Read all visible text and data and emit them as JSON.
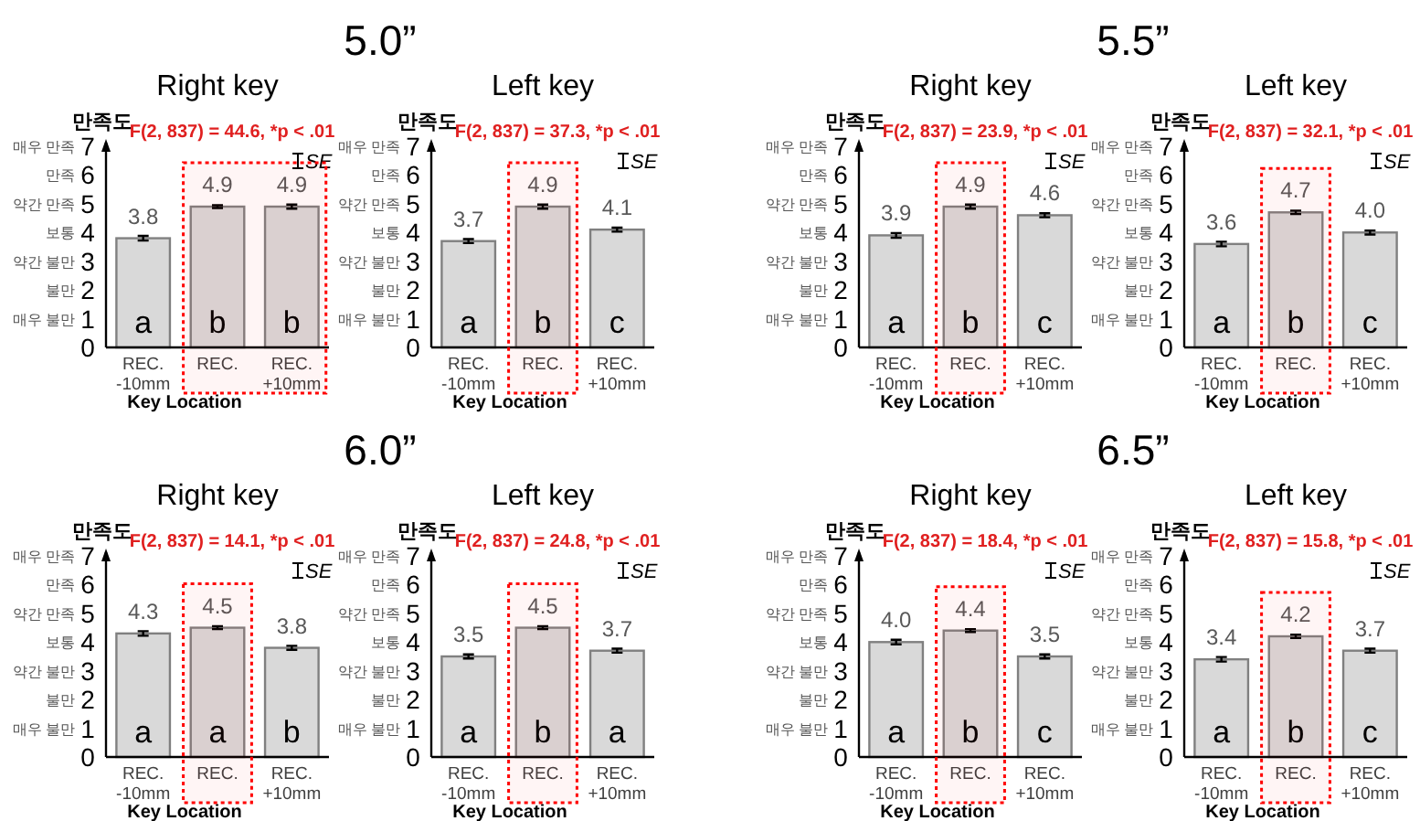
{
  "chart_data": [
    {
      "type": "bar",
      "title": "Right key",
      "xlabel": "Key Location",
      "ylabel": "만족도",
      "categories": [
        "REC. -10mm",
        "REC.",
        "REC. +10mm"
      ],
      "values": [
        3.8,
        4.9,
        4.9
      ],
      "value_labels": [
        "3.8",
        "4.9",
        "4.9"
      ],
      "errors": [
        0.08,
        0.05,
        0.07
      ],
      "color": "#d9d9d9",
      "ylim": [
        0,
        7
      ],
      "yticks": [
        0,
        1,
        2,
        3,
        4,
        5,
        6,
        7
      ],
      "annotations": [
        "5.0”",
        "F(2, 837) = 44.6, *p < .01",
        "SE",
        "매우 불만",
        "불만",
        "약간 불만",
        "보통",
        "약간 만족",
        "만족",
        "매우 만족",
        "a",
        "b",
        "b"
      ],
      "bands": [
        {
          "axis": "x",
          "from": "REC.",
          "to": "REC. +10mm",
          "color": "#ff0000"
        }
      ]
    },
    {
      "type": "bar",
      "title": "Left key",
      "xlabel": "Key Location",
      "ylabel": "만족도",
      "categories": [
        "REC. -10mm",
        "REC.",
        "REC. +10mm"
      ],
      "values": [
        3.7,
        4.9,
        4.1
      ],
      "value_labels": [
        "3.7",
        "4.9",
        "4.1"
      ],
      "errors": [
        0.07,
        0.07,
        0.07
      ],
      "color": "#d9d9d9",
      "ylim": [
        0,
        7
      ],
      "yticks": [
        0,
        1,
        2,
        3,
        4,
        5,
        6,
        7
      ],
      "annotations": [
        "F(2, 837) = 37.3, *p < .01",
        "SE",
        "매우 불만",
        "불만",
        "약간 불만",
        "보통",
        "약간 만족",
        "만족",
        "매우 만족",
        "a",
        "b",
        "c"
      ],
      "bands": [
        {
          "axis": "x",
          "from": "REC.",
          "to": "REC.",
          "color": "#ff0000"
        }
      ]
    },
    {
      "type": "bar",
      "title": "Right key",
      "xlabel": "Key Location",
      "ylabel": "만족도",
      "categories": [
        "REC. -10mm",
        "REC.",
        "REC. +10mm"
      ],
      "values": [
        3.9,
        4.9,
        4.6
      ],
      "value_labels": [
        "3.9",
        "4.9",
        "4.6"
      ],
      "errors": [
        0.08,
        0.07,
        0.07
      ],
      "color": "#d9d9d9",
      "ylim": [
        0,
        7
      ],
      "yticks": [
        0,
        1,
        2,
        3,
        4,
        5,
        6,
        7
      ],
      "annotations": [
        "5.5”",
        "F(2, 837) = 23.9, *p < .01",
        "SE",
        "매우 불만",
        "불만",
        "약간 불만",
        "보통",
        "약간 만족",
        "만족",
        "매우 만족",
        "a",
        "b",
        "c"
      ],
      "bands": [
        {
          "axis": "x",
          "from": "REC.",
          "to": "REC.",
          "color": "#ff0000"
        }
      ]
    },
    {
      "type": "bar",
      "title": "Left key",
      "xlabel": "Key Location",
      "ylabel": "만족도",
      "categories": [
        "REC. -10mm",
        "REC.",
        "REC. +10mm"
      ],
      "values": [
        3.6,
        4.7,
        4.0
      ],
      "value_labels": [
        "3.6",
        "4.7",
        "4.0"
      ],
      "errors": [
        0.08,
        0.06,
        0.07
      ],
      "color": "#d9d9d9",
      "ylim": [
        0,
        7
      ],
      "yticks": [
        0,
        1,
        2,
        3,
        4,
        5,
        6,
        7
      ],
      "annotations": [
        "F(2, 837) = 32.1, *p < .01",
        "SE",
        "매우 불만",
        "불만",
        "약간 불만",
        "보통",
        "약간 만족",
        "만족",
        "매우 만족",
        "a",
        "b",
        "c"
      ],
      "bands": [
        {
          "axis": "x",
          "from": "REC.",
          "to": "REC.",
          "color": "#ff0000"
        }
      ]
    },
    {
      "type": "bar",
      "title": "Right key",
      "xlabel": "Key Location",
      "ylabel": "만족도",
      "categories": [
        "REC. -10mm",
        "REC.",
        "REC. +10mm"
      ],
      "values": [
        4.3,
        4.5,
        3.8
      ],
      "value_labels": [
        "4.3",
        "4.5",
        "3.8"
      ],
      "errors": [
        0.08,
        0.05,
        0.07
      ],
      "color": "#d9d9d9",
      "ylim": [
        0,
        7
      ],
      "yticks": [
        0,
        1,
        2,
        3,
        4,
        5,
        6,
        7
      ],
      "annotations": [
        "6.0”",
        "F(2, 837) = 14.1, *p < .01",
        "SE",
        "매우 불만",
        "불만",
        "약간 불만",
        "보통",
        "약간 만족",
        "만족",
        "매우 만족",
        "a",
        "a",
        "b"
      ],
      "bands": [
        {
          "axis": "x",
          "from": "REC.",
          "to": "REC.",
          "color": "#ff0000"
        }
      ]
    },
    {
      "type": "bar",
      "title": "Left key",
      "xlabel": "Key Location",
      "ylabel": "만족도",
      "categories": [
        "REC. -10mm",
        "REC.",
        "REC. +10mm"
      ],
      "values": [
        3.5,
        4.5,
        3.7
      ],
      "value_labels": [
        "3.5",
        "4.5",
        "3.7"
      ],
      "errors": [
        0.07,
        0.05,
        0.07
      ],
      "color": "#d9d9d9",
      "ylim": [
        0,
        7
      ],
      "yticks": [
        0,
        1,
        2,
        3,
        4,
        5,
        6,
        7
      ],
      "annotations": [
        "F(2, 837) = 24.8, *p < .01",
        "SE",
        "매우 불만",
        "불만",
        "약간 불만",
        "보통",
        "약간 만족",
        "만족",
        "매우 만족",
        "a",
        "b",
        "a"
      ],
      "bands": [
        {
          "axis": "x",
          "from": "REC.",
          "to": "REC.",
          "color": "#ff0000"
        }
      ]
    },
    {
      "type": "bar",
      "title": "Right key",
      "xlabel": "Key Location",
      "ylabel": "만족도",
      "categories": [
        "REC. -10mm",
        "REC.",
        "REC. +10mm"
      ],
      "values": [
        4.0,
        4.4,
        3.5
      ],
      "value_labels": [
        "4.0",
        "4.4",
        "3.5"
      ],
      "errors": [
        0.08,
        0.05,
        0.07
      ],
      "color": "#d9d9d9",
      "ylim": [
        0,
        7
      ],
      "yticks": [
        0,
        1,
        2,
        3,
        4,
        5,
        6,
        7
      ],
      "annotations": [
        "6.5”",
        "F(2, 837) = 18.4, *p < .01",
        "SE",
        "매우 불만",
        "불만",
        "약간 불만",
        "보통",
        "약간 만족",
        "만족",
        "매우 만족",
        "a",
        "b",
        "c"
      ],
      "bands": [
        {
          "axis": "x",
          "from": "REC.",
          "to": "REC.",
          "color": "#ff0000"
        }
      ]
    },
    {
      "type": "bar",
      "title": "Left key",
      "xlabel": "Key Location",
      "ylabel": "만족도",
      "categories": [
        "REC. -10mm",
        "REC.",
        "REC. +10mm"
      ],
      "values": [
        3.4,
        4.2,
        3.7
      ],
      "value_labels": [
        "3.4",
        "4.2",
        "3.7"
      ],
      "errors": [
        0.08,
        0.06,
        0.07
      ],
      "color": "#d9d9d9",
      "ylim": [
        0,
        7
      ],
      "yticks": [
        0,
        1,
        2,
        3,
        4,
        5,
        6,
        7
      ],
      "annotations": [
        "F(2, 837) = 15.8, *p < .01",
        "SE",
        "매우 불만",
        "불만",
        "약간 불만",
        "보통",
        "약간 만족",
        "만족",
        "매우 만족",
        "a",
        "b",
        "c"
      ],
      "bands": [
        {
          "axis": "x",
          "from": "REC.",
          "to": "REC.",
          "color": "#ff0000"
        }
      ]
    }
  ]
}
